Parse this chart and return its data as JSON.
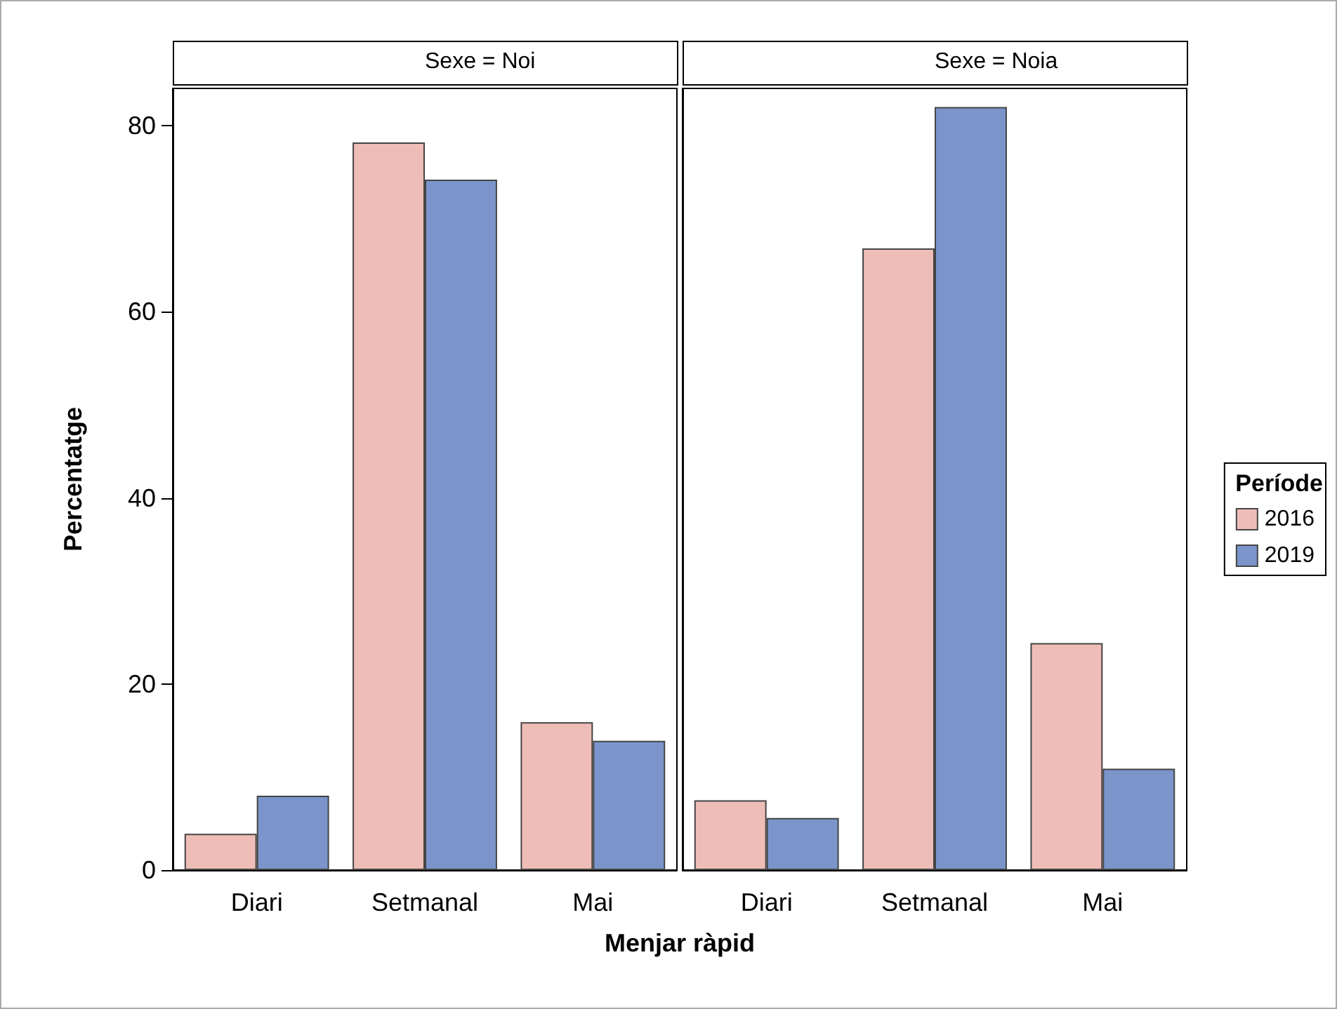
{
  "chart_data": [
    {
      "type": "bar",
      "title": "Sexe = Noi",
      "ylabel": "Percentatge",
      "xlabel": "Menjar ràpid",
      "categories": [
        "Diari",
        "Setmanal",
        "Mai"
      ],
      "series": [
        {
          "color": "#efbdb7",
          "values": [
            3.9,
            78.2,
            15.9
          ]
        },
        {
          "color": "#7b95cb",
          "values": [
            8.0,
            74.2,
            13.9
          ]
        }
      ],
      "ylim": [
        0,
        84
      ],
      "yticks": [
        0,
        20,
        40,
        60,
        80
      ],
      "grid": false,
      "legend": false
    },
    {
      "type": "bar",
      "title": "Sexe = Noia",
      "legend_title": "Període",
      "categories": [
        "Diari",
        "Setmanal",
        "Mai"
      ],
      "series": [
        {
          "name": "2016",
          "color": "#efbdb7",
          "values": [
            7.5,
            66.8,
            24.4
          ]
        },
        {
          "name": "2019",
          "color": "#7b95cb",
          "values": [
            5.6,
            82.0,
            10.9
          ]
        }
      ],
      "ylim": [
        0,
        84
      ],
      "yticks": [
        0,
        20,
        40,
        60,
        80
      ],
      "tick_labels": "x",
      "grid": false,
      "legend": "right"
    }
  ]
}
